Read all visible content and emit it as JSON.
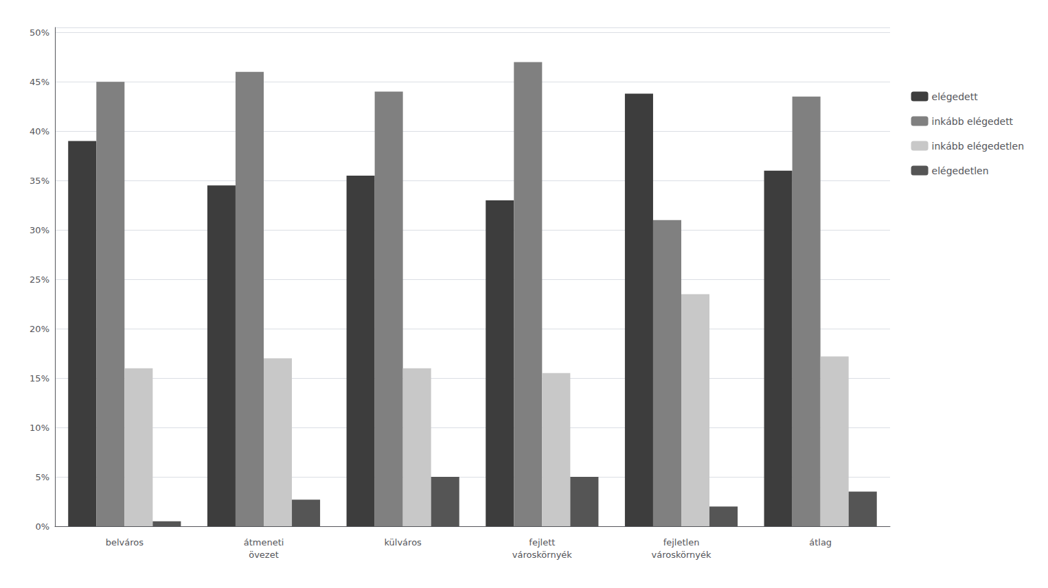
{
  "chart_data": {
    "type": "bar",
    "categories": [
      "belváros",
      "átmeneti\növezet",
      "külváros",
      "fejlett\nvároskörnyék",
      "fejletlen\nvároskörnyék",
      "átlag"
    ],
    "series": [
      {
        "name": "elégedett",
        "color": "#3d3d3d",
        "values": [
          0.39,
          0.345,
          0.355,
          0.33,
          0.438,
          0.36
        ]
      },
      {
        "name": "inkább elégedett",
        "color": "#808080",
        "values": [
          0.45,
          0.46,
          0.44,
          0.47,
          0.31,
          0.435
        ]
      },
      {
        "name": "inkább elégedetlen",
        "color": "#c8c8c8",
        "values": [
          0.16,
          0.17,
          0.16,
          0.155,
          0.235,
          0.172
        ]
      },
      {
        "name": "elégedetlen",
        "color": "#555555",
        "values": [
          0.005,
          0.027,
          0.05,
          0.05,
          0.02,
          0.035
        ]
      }
    ],
    "ylim": [
      0,
      0.505
    ],
    "yticks": [
      {
        "value": 0,
        "label": "0%"
      },
      {
        "value": 0.05,
        "label": "5%"
      },
      {
        "value": 0.1,
        "label": "10%"
      },
      {
        "value": 0.15,
        "label": "15%"
      },
      {
        "value": 0.2,
        "label": "20%"
      },
      {
        "value": 0.25,
        "label": "25%"
      },
      {
        "value": 0.3,
        "label": "30%"
      },
      {
        "value": 0.35,
        "label": "35%"
      },
      {
        "value": 0.4,
        "label": "40%"
      },
      {
        "value": 0.45,
        "label": "45%"
      },
      {
        "value": 0.5,
        "label": "50%"
      }
    ],
    "grid": true,
    "legend": "right"
  }
}
